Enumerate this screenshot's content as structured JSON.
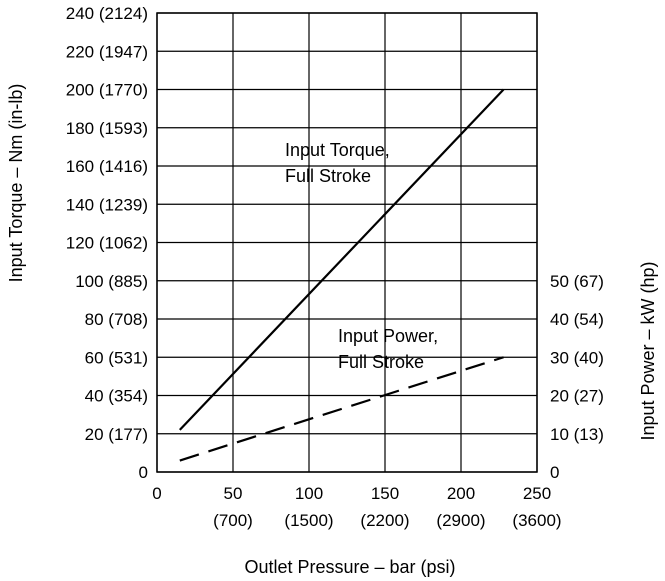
{
  "chart_data": {
    "type": "line",
    "xlabel": "Outlet Pressure – bar (psi)",
    "ylabel_left": "Input Torque – Nm (in-lb)",
    "ylabel_right": "Input Power – kW (hp)",
    "xlim": [
      0,
      250
    ],
    "ylim_left": [
      0,
      240
    ],
    "ylim_right": [
      0,
      120
    ],
    "grid": true,
    "x_ticks": [
      {
        "value": 0,
        "label": "0",
        "sublabel": ""
      },
      {
        "value": 50,
        "label": "50",
        "sublabel": "(700)"
      },
      {
        "value": 100,
        "label": "100",
        "sublabel": "(1500)"
      },
      {
        "value": 150,
        "label": "150",
        "sublabel": "(2200)"
      },
      {
        "value": 200,
        "label": "200",
        "sublabel": "(2900)"
      },
      {
        "value": 250,
        "label": "250",
        "sublabel": "(3600)"
      }
    ],
    "y_ticks_left": [
      {
        "value": 0,
        "label": "0"
      },
      {
        "value": 20,
        "label": "20 (177)"
      },
      {
        "value": 40,
        "label": "40 (354)"
      },
      {
        "value": 60,
        "label": "60 (531)"
      },
      {
        "value": 80,
        "label": "80 (708)"
      },
      {
        "value": 100,
        "label": "100 (885)"
      },
      {
        "value": 120,
        "label": "120 (1062)"
      },
      {
        "value": 140,
        "label": "140 (1239)"
      },
      {
        "value": 160,
        "label": "160 (1416)"
      },
      {
        "value": 180,
        "label": "180 (1593)"
      },
      {
        "value": 200,
        "label": "200 (1770)"
      },
      {
        "value": 220,
        "label": "220 (1947)"
      },
      {
        "value": 240,
        "label": "240 (2124)"
      }
    ],
    "y_ticks_right": [
      {
        "value": 0,
        "label": "0"
      },
      {
        "value": 10,
        "label": "10 (13)"
      },
      {
        "value": 20,
        "label": "20 (27)"
      },
      {
        "value": 30,
        "label": "30 (40)"
      },
      {
        "value": 40,
        "label": "40 (54)"
      },
      {
        "value": 50,
        "label": "50 (67)"
      }
    ],
    "series": [
      {
        "name": "Input Torque, Full Stroke",
        "axis": "left",
        "style": "solid",
        "x": [
          15,
          228
        ],
        "values": [
          22,
          200
        ]
      },
      {
        "name": "Input Power, Full Stroke",
        "axis": "right",
        "style": "dashed",
        "x": [
          15,
          228
        ],
        "values": [
          3,
          30
        ]
      }
    ],
    "annotations": [
      {
        "line1": "Input Torque,",
        "line2": "Full Stroke"
      },
      {
        "line1": "Input Power,",
        "line2": "Full Stroke"
      }
    ]
  }
}
